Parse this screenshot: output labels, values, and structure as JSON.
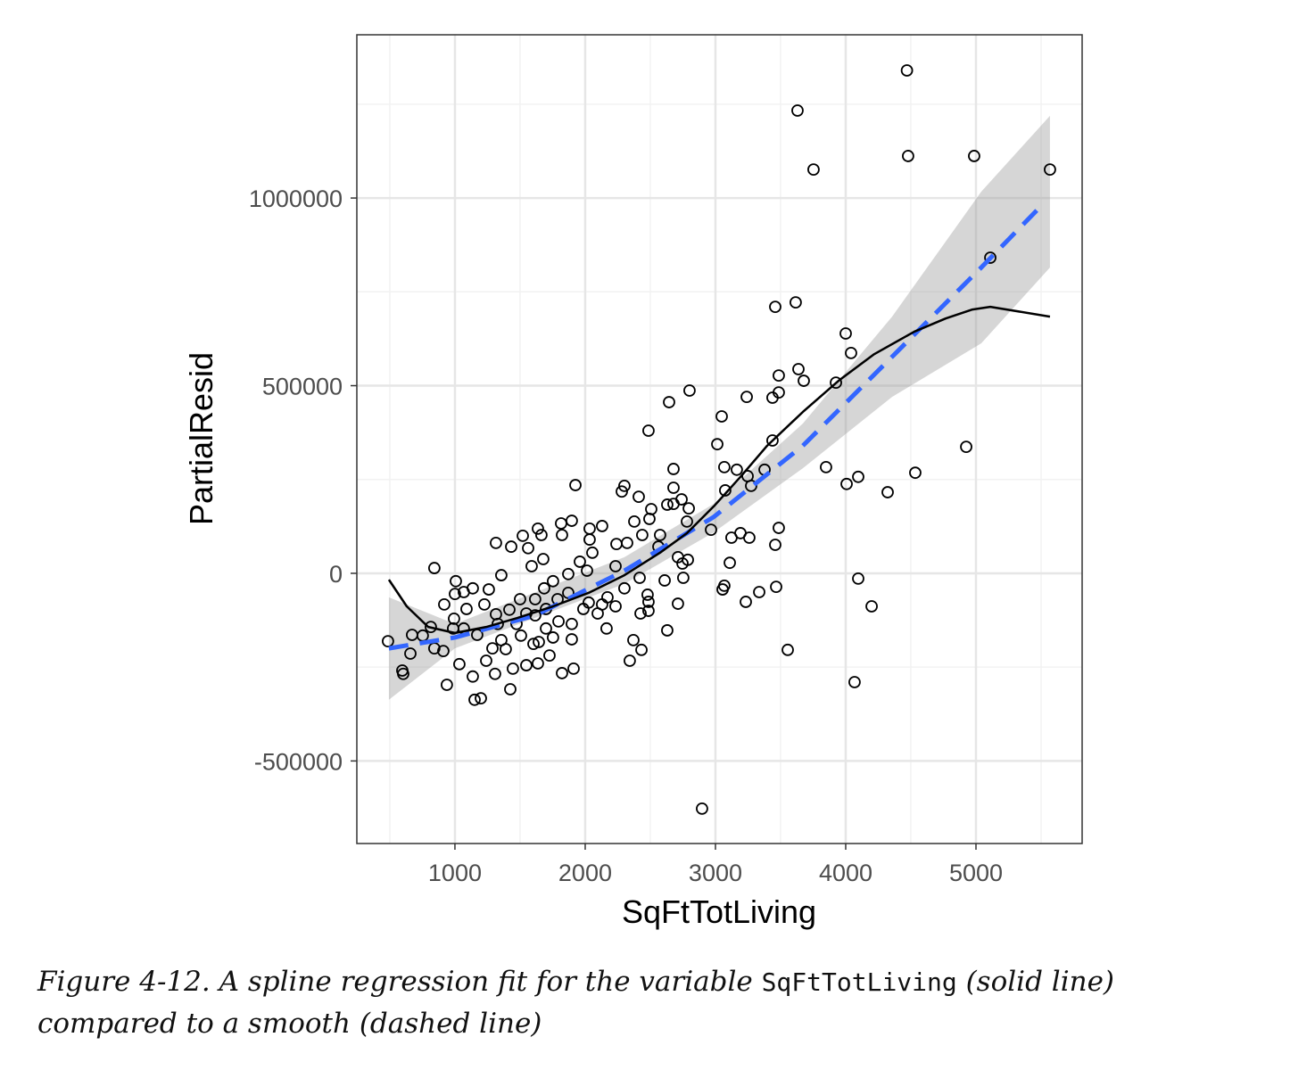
{
  "caption": {
    "prefix": "Figure 4-12. A spline regression fit for the variable ",
    "code": "SqFtTotLiving",
    "suffix": " (solid line) compared to a smooth (dashed line)"
  },
  "chart_data": {
    "type": "scatter",
    "xlabel": "SqFtTotLiving",
    "ylabel": "PartialResid",
    "xlim": [
      247,
      5815
    ],
    "ylim": [
      -720000,
      1435000
    ],
    "x_ticks": [
      1000,
      2000,
      3000,
      4000,
      5000
    ],
    "x_tick_labels": [
      "1000",
      "2000",
      "3000",
      "4000",
      "5000"
    ],
    "y_ticks": [
      -500000,
      0,
      500000,
      1000000
    ],
    "y_tick_labels": [
      "-500000",
      "0",
      "500000",
      "1000000"
    ],
    "grid": true,
    "colors": {
      "points": "#000000",
      "spline": "#000000",
      "smooth": "#3366ff",
      "band": "#999999"
    },
    "points": [
      [
        4470,
        1340000
      ],
      [
        3630,
        1233000
      ],
      [
        3753,
        1076000
      ],
      [
        4479,
        1112000
      ],
      [
        4986,
        1112000
      ],
      [
        5568,
        1076000
      ],
      [
        5110,
        841000
      ],
      [
        3616,
        722000
      ],
      [
        3459,
        710000
      ],
      [
        4000,
        639000
      ],
      [
        4041,
        587000
      ],
      [
        3925,
        508000
      ],
      [
        3486,
        527000
      ],
      [
        3637,
        544000
      ],
      [
        3678,
        513000
      ],
      [
        3486,
        482000
      ],
      [
        3438,
        468000
      ],
      [
        3240,
        470000
      ],
      [
        2801,
        487000
      ],
      [
        2644,
        456000
      ],
      [
        2486,
        380000
      ],
      [
        3048,
        418000
      ],
      [
        3014,
        344000
      ],
      [
        3438,
        354000
      ],
      [
        4925,
        337000
      ],
      [
        3849,
        283000
      ],
      [
        4096,
        257000
      ],
      [
        4007,
        238000
      ],
      [
        4322,
        216000
      ],
      [
        4534,
        268000
      ],
      [
        3068,
        283000
      ],
      [
        3164,
        276000
      ],
      [
        3247,
        259000
      ],
      [
        3377,
        276000
      ],
      [
        3274,
        233000
      ],
      [
        3075,
        221000
      ],
      [
        3486,
        121000
      ],
      [
        3459,
        76000
      ],
      [
        3123,
        95000
      ],
      [
        3192,
        107000
      ],
      [
        3260,
        95000
      ],
      [
        3110,
        28000
      ],
      [
        2966,
        116000
      ],
      [
        3055,
        -43000
      ],
      [
        3068,
        -33000
      ],
      [
        3336,
        -50000
      ],
      [
        3233,
        -76000
      ],
      [
        3466,
        -36000
      ],
      [
        4096,
        -14000
      ],
      [
        4199,
        -88000
      ],
      [
        4068,
        -290000
      ],
      [
        3555,
        -204000
      ],
      [
        2897,
        -627000
      ],
      [
        2678,
        185000
      ],
      [
        2678,
        228000
      ],
      [
        2678,
        278000
      ],
      [
        2740,
        197000
      ],
      [
        2795,
        173000
      ],
      [
        2781,
        138000
      ],
      [
        2630,
        183000
      ],
      [
        2507,
        171000
      ],
      [
        2493,
        145000
      ],
      [
        2575,
        102000
      ],
      [
        2438,
        102000
      ],
      [
        2562,
        71000
      ],
      [
        2712,
        43000
      ],
      [
        2747,
        26000
      ],
      [
        2788,
        36000
      ],
      [
        2753,
        -12000
      ],
      [
        2712,
        -81000
      ],
      [
        2630,
        -152000
      ],
      [
        2610,
        -19000
      ],
      [
        2479,
        -57000
      ],
      [
        2486,
        -100000
      ],
      [
        2425,
        -107000
      ],
      [
        2432,
        -204000
      ],
      [
        2370,
        -178000
      ],
      [
        2342,
        -233000
      ],
      [
        2301,
        233000
      ],
      [
        2281,
        218000
      ],
      [
        2411,
        204000
      ],
      [
        2377,
        138000
      ],
      [
        2322,
        81000
      ],
      [
        2240,
        78000
      ],
      [
        2130,
        126000
      ],
      [
        2034,
        119000
      ],
      [
        1925,
        235000
      ],
      [
        1897,
        140000
      ],
      [
        1815,
        133000
      ],
      [
        1822,
        102000
      ],
      [
        2034,
        90000
      ],
      [
        2055,
        55000
      ],
      [
        1959,
        31000
      ],
      [
        1870,
        -2000
      ],
      [
        1637,
        119000
      ],
      [
        1664,
        102000
      ],
      [
        1521,
        100000
      ],
      [
        1562,
        67000
      ],
      [
        1315,
        81000
      ],
      [
        1432,
        71000
      ],
      [
        1678,
        38000
      ],
      [
        1589,
        19000
      ],
      [
        1356,
        -5000
      ],
      [
        1260,
        -43000
      ],
      [
        1137,
        -40000
      ],
      [
        1068,
        -50000
      ],
      [
        1007,
        -21000
      ],
      [
        1000,
        -55000
      ],
      [
        918,
        -83000
      ],
      [
        842,
        14000
      ],
      [
        1089,
        -95000
      ],
      [
        993,
        -121000
      ],
      [
        1226,
        -83000
      ],
      [
        1315,
        -109000
      ],
      [
        1418,
        -97000
      ],
      [
        1500,
        -69000
      ],
      [
        1616,
        -69000
      ],
      [
        1699,
        -95000
      ],
      [
        1788,
        -69000
      ],
      [
        1870,
        -52000
      ],
      [
        2027,
        -78000
      ],
      [
        2130,
        -83000
      ],
      [
        2233,
        -88000
      ],
      [
        2164,
        -147000
      ],
      [
        2096,
        -107000
      ],
      [
        1986,
        -95000
      ],
      [
        1897,
        -135000
      ],
      [
        1897,
        -176000
      ],
      [
        1911,
        -254000
      ],
      [
        1822,
        -266000
      ],
      [
        1726,
        -219000
      ],
      [
        1637,
        -240000
      ],
      [
        1548,
        -245000
      ],
      [
        1445,
        -254000
      ],
      [
        1425,
        -309000
      ],
      [
        1308,
        -268000
      ],
      [
        1240,
        -233000
      ],
      [
        1151,
        -337000
      ],
      [
        1199,
        -333000
      ],
      [
        1137,
        -275000
      ],
      [
        1034,
        -242000
      ],
      [
        938,
        -297000
      ],
      [
        911,
        -207000
      ],
      [
        842,
        -200000
      ],
      [
        815,
        -143000
      ],
      [
        753,
        -166000
      ],
      [
        671,
        -164000
      ],
      [
        658,
        -214000
      ],
      [
        596,
        -259000
      ],
      [
        603,
        -268000
      ],
      [
        486,
        -181000
      ],
      [
        986,
        -147000
      ],
      [
        1068,
        -147000
      ],
      [
        1171,
        -164000
      ],
      [
        1356,
        -178000
      ],
      [
        1507,
        -166000
      ],
      [
        1603,
        -188000
      ],
      [
        1699,
        -147000
      ],
      [
        1795,
        -128000
      ],
      [
        1753,
        -171000
      ],
      [
        1644,
        -183000
      ],
      [
        1473,
        -135000
      ],
      [
        1390,
        -202000
      ],
      [
        1288,
        -200000
      ],
      [
        1329,
        -135000
      ],
      [
        1548,
        -107000
      ],
      [
        1616,
        -112000
      ],
      [
        1685,
        -40000
      ],
      [
        1753,
        -21000
      ],
      [
        2014,
        7000
      ],
      [
        2233,
        19000
      ],
      [
        2301,
        -40000
      ],
      [
        2418,
        -12000
      ],
      [
        2486,
        -76000
      ],
      [
        2171,
        -64000
      ]
    ],
    "spline_fit": [
      [
        493,
        -17000
      ],
      [
        630,
        -88000
      ],
      [
        795,
        -143000
      ],
      [
        1000,
        -159000
      ],
      [
        1240,
        -143000
      ],
      [
        1479,
        -119000
      ],
      [
        1753,
        -88000
      ],
      [
        2027,
        -52000
      ],
      [
        2301,
        -5000
      ],
      [
        2575,
        55000
      ],
      [
        2781,
        107000
      ],
      [
        2986,
        178000
      ],
      [
        3192,
        257000
      ],
      [
        3397,
        340000
      ],
      [
        3671,
        430000
      ],
      [
        3945,
        513000
      ],
      [
        4219,
        584000
      ],
      [
        4527,
        644000
      ],
      [
        4767,
        679000
      ],
      [
        4973,
        703000
      ],
      [
        5110,
        710000
      ],
      [
        5568,
        684000
      ]
    ],
    "smooth_fit": [
      [
        493,
        -200000
      ],
      [
        1000,
        -171000
      ],
      [
        1616,
        -112000
      ],
      [
        2301,
        7000
      ],
      [
        2986,
        150000
      ],
      [
        3671,
        340000
      ],
      [
        4356,
        577000
      ],
      [
        5041,
        815000
      ],
      [
        5486,
        974000
      ]
    ],
    "smooth_band": {
      "x": [
        493,
        1000,
        2301,
        2986,
        3671,
        4356,
        5041,
        5568
      ],
      "upper": [
        -64000,
        -135000,
        43000,
        185000,
        399000,
        684000,
        1017000,
        1219000
      ],
      "lower": [
        -337000,
        -200000,
        -28000,
        109000,
        280000,
        470000,
        613000,
        815000
      ]
    }
  }
}
